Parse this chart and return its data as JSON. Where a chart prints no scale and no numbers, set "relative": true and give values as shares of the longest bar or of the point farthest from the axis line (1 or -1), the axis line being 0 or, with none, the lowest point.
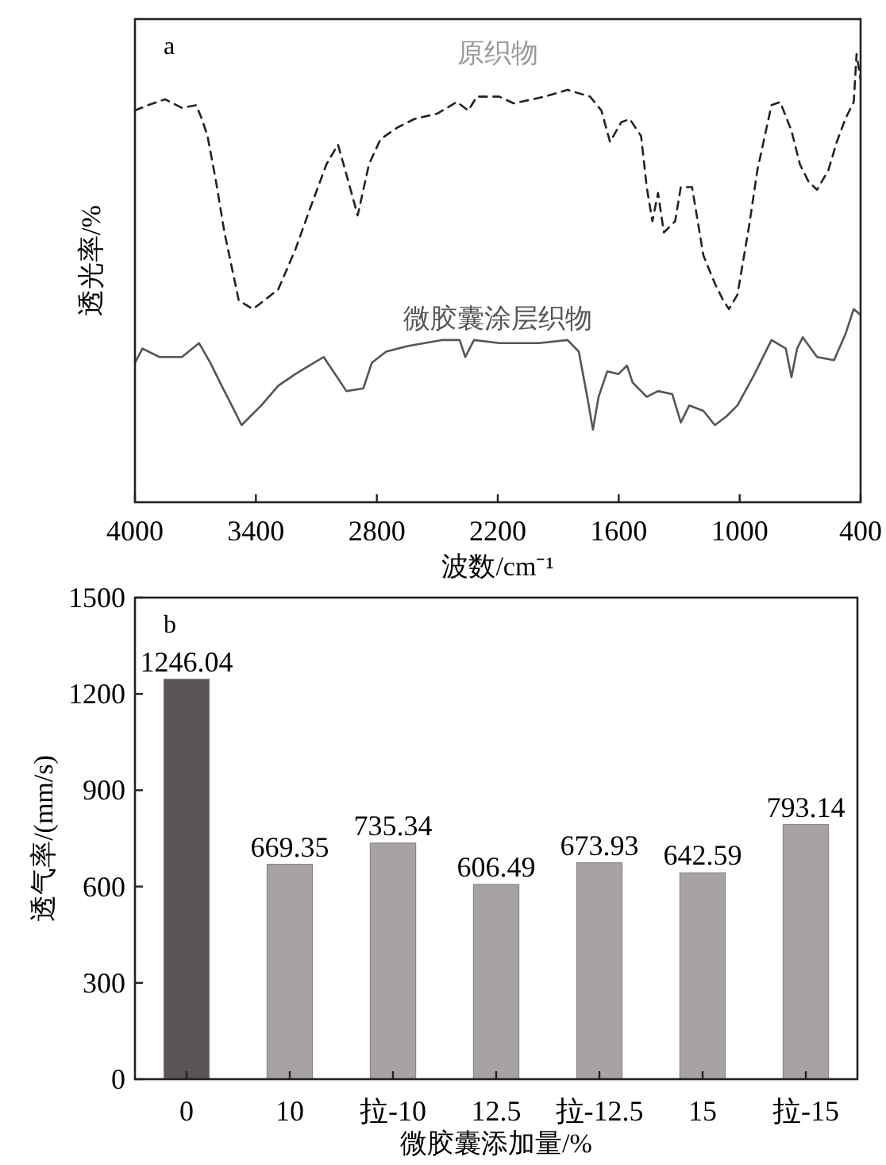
{
  "chart_data": [
    {
      "type": "line",
      "relative": true,
      "xlabel": "波数/cm⁻¹",
      "ylabel": "透光率/%",
      "xlim": [
        4000,
        400
      ],
      "xticks": [
        4000,
        3400,
        2800,
        2200,
        1600,
        1000,
        400
      ],
      "tick_labels": "x",
      "annotations": [
        "a"
      ],
      "series": [
        {
          "name": "原织物",
          "color": "#222222",
          "line_style": "dashed",
          "x": [
            4000,
            3935,
            3851,
            3767,
            3696,
            3668,
            3640,
            3598,
            3556,
            3485,
            3415,
            3359,
            3289,
            3204,
            3134,
            3050,
            2993,
            2965,
            2895,
            2839,
            2782,
            2698,
            2614,
            2501,
            2403,
            2346,
            2304,
            2192,
            2122,
            1967,
            1854,
            1742,
            1686,
            1643,
            1587,
            1545,
            1489,
            1461,
            1433,
            1405,
            1376,
            1320,
            1292,
            1236,
            1180,
            1123,
            1081,
            1053,
            1011,
            954,
            912,
            842,
            799,
            743,
            701,
            659,
            616,
            560,
            518,
            476,
            434,
            420,
            400
          ],
          "values": [
            0.874,
            0.886,
            0.899,
            0.88,
            0.886,
            0.855,
            0.817,
            0.716,
            0.602,
            0.45,
            0.431,
            0.45,
            0.475,
            0.564,
            0.652,
            0.754,
            0.798,
            0.754,
            0.64,
            0.754,
            0.81,
            0.836,
            0.855,
            0.867,
            0.893,
            0.874,
            0.905,
            0.905,
            0.89,
            0.905,
            0.92,
            0.905,
            0.874,
            0.804,
            0.848,
            0.855,
            0.817,
            0.703,
            0.627,
            0.69,
            0.602,
            0.627,
            0.703,
            0.703,
            0.551,
            0.488,
            0.45,
            0.431,
            0.463,
            0.614,
            0.741,
            0.886,
            0.893,
            0.829,
            0.754,
            0.716,
            0.697,
            0.741,
            0.804,
            0.855,
            0.893,
            1.0,
            0.943
          ]
        },
        {
          "name": "微胶囊涂层织物",
          "color": "#555555",
          "line_style": "solid",
          "x": [
            4000,
            3963,
            3879,
            3767,
            3682,
            3626,
            3570,
            3513,
            3471,
            3429,
            3373,
            3289,
            3204,
            3134,
            3064,
            3007,
            2951,
            2867,
            2825,
            2754,
            2642,
            2473,
            2389,
            2361,
            2318,
            2192,
            1995,
            1854,
            1798,
            1756,
            1728,
            1700,
            1657,
            1601,
            1559,
            1531,
            1461,
            1405,
            1334,
            1292,
            1250,
            1180,
            1123,
            1067,
            1011,
            926,
            842,
            771,
            743,
            715,
            687,
            616,
            532,
            476,
            434,
            400
          ],
          "values": [
            0.311,
            0.343,
            0.324,
            0.324,
            0.355,
            0.311,
            0.26,
            0.21,
            0.172,
            0.191,
            0.216,
            0.26,
            0.286,
            0.305,
            0.324,
            0.286,
            0.248,
            0.254,
            0.311,
            0.336,
            0.349,
            0.362,
            0.362,
            0.324,
            0.362,
            0.355,
            0.355,
            0.362,
            0.336,
            0.235,
            0.162,
            0.235,
            0.292,
            0.286,
            0.305,
            0.267,
            0.235,
            0.248,
            0.241,
            0.178,
            0.216,
            0.204,
            0.172,
            0.191,
            0.216,
            0.286,
            0.362,
            0.343,
            0.279,
            0.343,
            0.368,
            0.324,
            0.317,
            0.374,
            0.431,
            0.418
          ]
        }
      ]
    },
    {
      "type": "bar",
      "xlabel": "微胶囊添加量/%",
      "ylabel": "透气率/(mm/s)",
      "categories": [
        "0",
        "10",
        "拉-10",
        "12.5",
        "拉-12.5",
        "15",
        "拉-15"
      ],
      "values": [
        1246.04,
        669.35,
        735.34,
        606.49,
        673.93,
        642.59,
        793.14
      ],
      "colors": [
        "#5a5455",
        "#a8a2a4",
        "#a8a2a4",
        "#a8a2a4",
        "#a8a2a4",
        "#a8a2a4",
        "#a8a2a4"
      ],
      "ylim": [
        0,
        1500
      ],
      "yticks": [
        0,
        300,
        600,
        900,
        1200,
        1500
      ],
      "data_labels": true,
      "annotations": [
        "b"
      ]
    }
  ]
}
